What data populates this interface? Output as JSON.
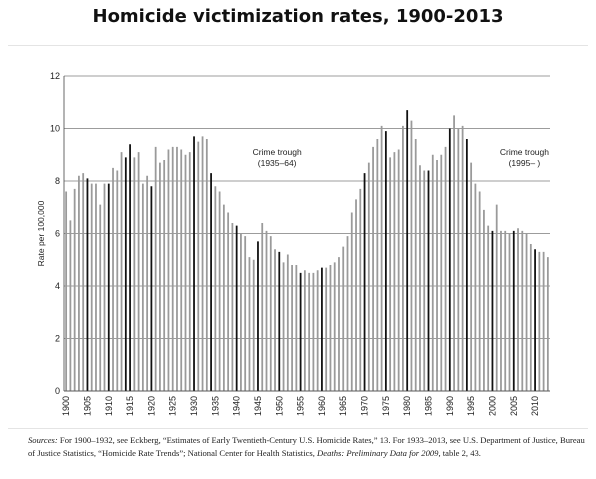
{
  "title": "Homicide victimization rates, 1900-2013",
  "footnote": {
    "label": "Sources:",
    "part1": " For 1900–1932, see Eckberg, “Estimates of Early Twentieth-Century U.S. Homicide Rates,” 13. For 1933–2013, see U.S. Department of Justice, Bureau of Justice Statistics, “Homicide Rate Trends”; National Center for Health Statistics, ",
    "italic": "Deaths: Preliminary Data for 2009",
    "part2": ", table 2, 43."
  },
  "chart_data": {
    "type": "bar",
    "title": "Homicide victimization rates, 1900-2013",
    "xlabel": "",
    "ylabel": "Rate per 100,000",
    "ylim": [
      0,
      12
    ],
    "yticks": [
      0,
      2,
      4,
      6,
      8,
      10,
      12
    ],
    "xticks": [
      1900,
      1905,
      1910,
      1915,
      1920,
      1925,
      1930,
      1935,
      1940,
      1945,
      1950,
      1955,
      1960,
      1965,
      1970,
      1975,
      1980,
      1985,
      1990,
      1995,
      2000,
      2005,
      2010
    ],
    "grid": "horizontal",
    "bar_color": "#9a9a9a",
    "highlight_color": "#111111",
    "highlight_years": [
      1905,
      1910,
      1914,
      1915,
      1920,
      1930,
      1934,
      1940,
      1945,
      1950,
      1955,
      1960,
      1970,
      1975,
      1980,
      1985,
      1990,
      1994,
      2000,
      2005,
      2010
    ],
    "years": [
      1900,
      1901,
      1902,
      1903,
      1904,
      1905,
      1906,
      1907,
      1908,
      1909,
      1910,
      1911,
      1912,
      1913,
      1914,
      1915,
      1916,
      1917,
      1918,
      1919,
      1920,
      1921,
      1922,
      1923,
      1924,
      1925,
      1926,
      1927,
      1928,
      1929,
      1930,
      1931,
      1932,
      1933,
      1934,
      1935,
      1936,
      1937,
      1938,
      1939,
      1940,
      1941,
      1942,
      1943,
      1944,
      1945,
      1946,
      1947,
      1948,
      1949,
      1950,
      1951,
      1952,
      1953,
      1954,
      1955,
      1956,
      1957,
      1958,
      1959,
      1960,
      1961,
      1962,
      1963,
      1964,
      1965,
      1966,
      1967,
      1968,
      1969,
      1970,
      1971,
      1972,
      1973,
      1974,
      1975,
      1976,
      1977,
      1978,
      1979,
      1980,
      1981,
      1982,
      1983,
      1984,
      1985,
      1986,
      1987,
      1988,
      1989,
      1990,
      1991,
      1992,
      1993,
      1994,
      1995,
      1996,
      1997,
      1998,
      1999,
      2000,
      2001,
      2002,
      2003,
      2004,
      2005,
      2006,
      2007,
      2008,
      2009,
      2010,
      2011,
      2012,
      2013
    ],
    "values": [
      7.6,
      6.5,
      7.7,
      8.2,
      8.3,
      8.1,
      7.9,
      7.9,
      7.1,
      7.9,
      7.9,
      8.5,
      8.4,
      9.1,
      8.9,
      9.4,
      8.9,
      9.1,
      7.9,
      8.2,
      7.8,
      9.3,
      8.7,
      8.8,
      9.2,
      9.3,
      9.3,
      9.2,
      9.0,
      9.1,
      9.7,
      9.5,
      9.7,
      9.6,
      8.3,
      7.8,
      7.6,
      7.1,
      6.8,
      6.4,
      6.3,
      6.0,
      5.9,
      5.1,
      5.0,
      5.7,
      6.4,
      6.1,
      5.9,
      5.4,
      5.3,
      4.9,
      5.2,
      4.8,
      4.8,
      4.5,
      4.6,
      4.5,
      4.5,
      4.6,
      4.7,
      4.7,
      4.8,
      4.9,
      5.1,
      5.5,
      5.9,
      6.8,
      7.3,
      7.7,
      8.3,
      8.7,
      9.3,
      9.6,
      10.1,
      9.9,
      8.9,
      9.1,
      9.2,
      10.1,
      10.7,
      10.3,
      9.6,
      8.6,
      8.4,
      8.4,
      9.0,
      8.8,
      9.0,
      9.3,
      10.0,
      10.5,
      10.0,
      10.1,
      9.6,
      8.7,
      7.9,
      7.6,
      6.9,
      6.3,
      6.1,
      7.1,
      6.1,
      6.1,
      6.0,
      6.1,
      6.2,
      6.1,
      6.0,
      5.6,
      5.4,
      5.3,
      5.3,
      5.1
    ],
    "annotations": [
      {
        "id": "trough-1",
        "lines": [
          "Crime trough",
          "(1935–64)"
        ],
        "year": 1949.5,
        "value": 9.0
      },
      {
        "id": "trough-2",
        "lines": [
          "Crime trough",
          "(1995– )"
        ],
        "year": 2007.5,
        "value": 9.0
      }
    ]
  }
}
